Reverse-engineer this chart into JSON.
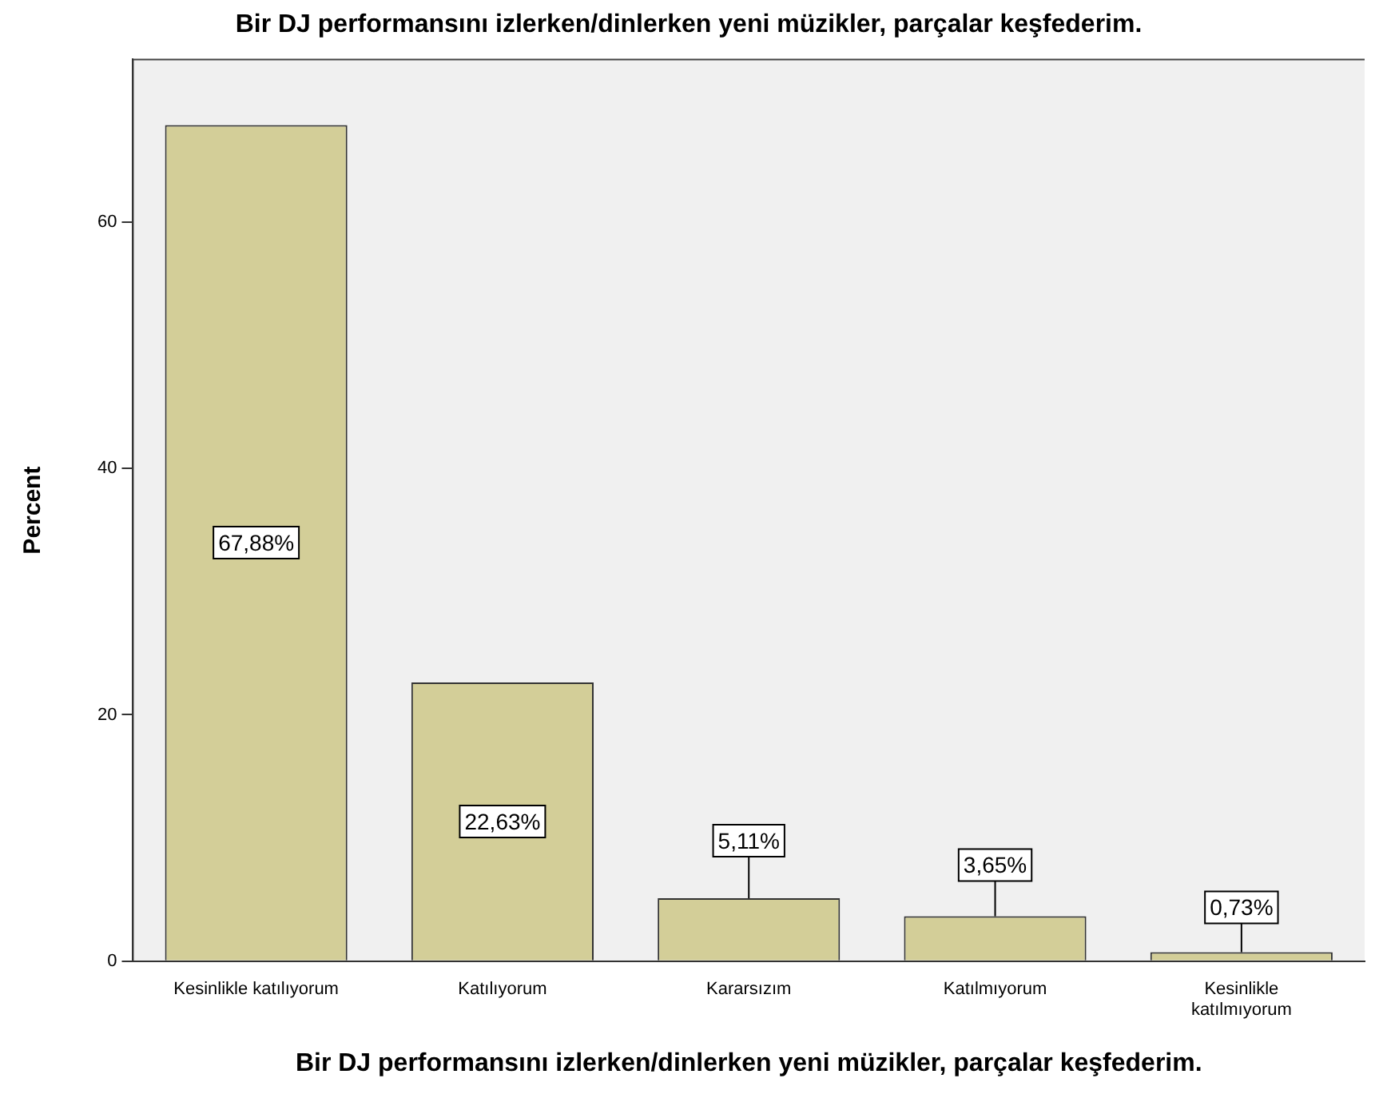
{
  "chart_data": {
    "type": "bar",
    "title": "Bir DJ performansını izlerken/dinlerken yeni müzikler, parçalar keşfederim.",
    "xlabel": "Bir DJ performansını izlerken/dinlerken yeni müzikler, parçalar keşfederim.",
    "ylabel": "Percent",
    "categories": [
      "Kesinlikle katılıyorum",
      "Katılıyorum",
      "Kararsızım",
      "Katılmıyorum",
      "Kesinlikle katılmıyorum"
    ],
    "values": [
      67.88,
      22.63,
      5.11,
      3.65,
      0.73
    ],
    "value_labels": [
      "67,88%",
      "22,63%",
      "5,11%",
      "3,65%",
      "0,73%"
    ],
    "color": "#d3ce98",
    "ylim": [
      0,
      73.2
    ],
    "yticks": [
      0,
      20,
      40,
      60
    ],
    "grid": false,
    "legend": false
  }
}
